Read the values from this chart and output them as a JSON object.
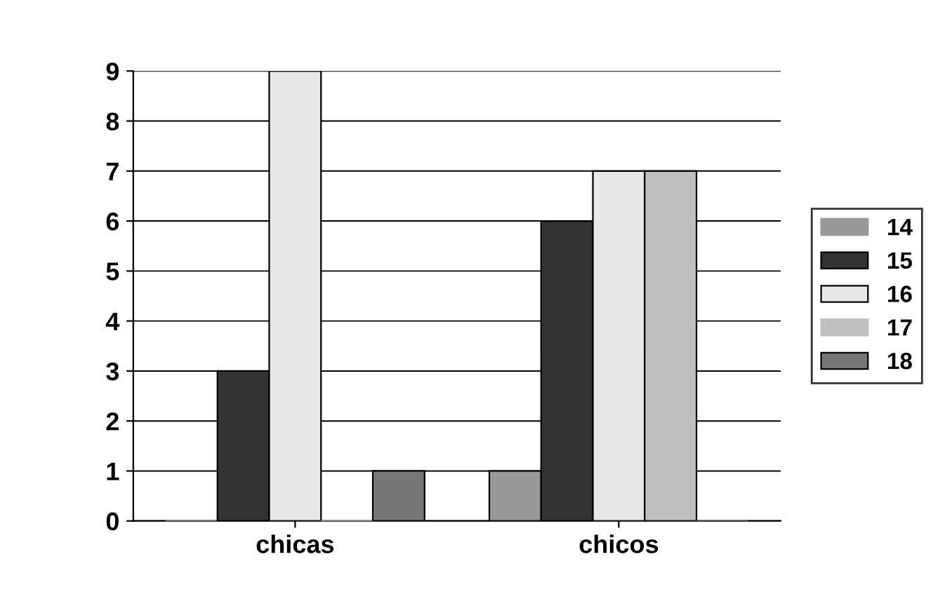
{
  "chart_data": {
    "type": "bar",
    "categories": [
      "chicas",
      "chicos"
    ],
    "series": [
      {
        "name": "14",
        "color": "#999999",
        "values": [
          0,
          1
        ]
      },
      {
        "name": "15",
        "color": "#333333",
        "values": [
          3,
          6
        ]
      },
      {
        "name": "16",
        "color": "#e8e8e8",
        "values": [
          9,
          7
        ]
      },
      {
        "name": "17",
        "color": "#c0c0c0",
        "values": [
          0,
          7
        ]
      },
      {
        "name": "18",
        "color": "#777777",
        "values": [
          1,
          0
        ]
      }
    ],
    "ylim": [
      0,
      9
    ],
    "yticks": [
      0,
      1,
      2,
      3,
      4,
      5,
      6,
      7,
      8,
      9
    ],
    "grid": "y",
    "legend": "right"
  }
}
